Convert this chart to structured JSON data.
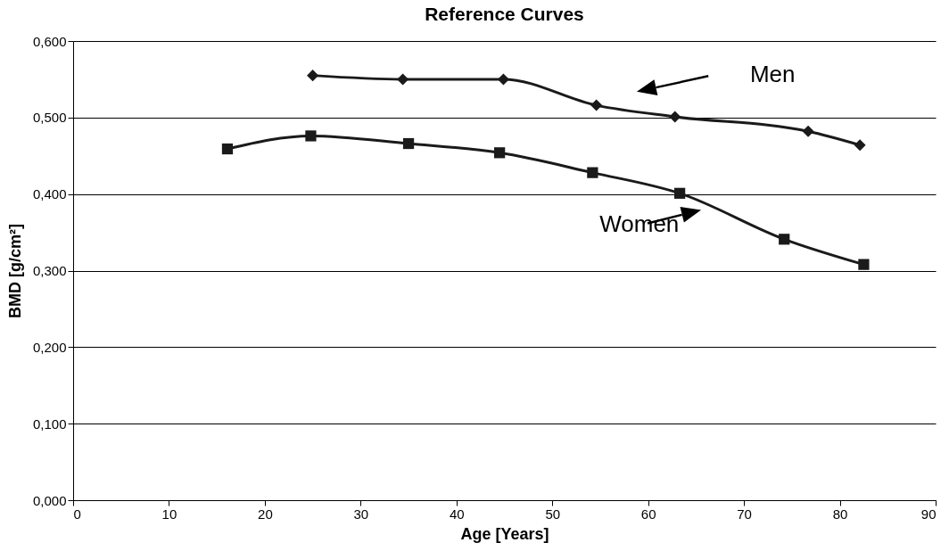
{
  "chart_data": {
    "type": "line",
    "title": "Reference Curves",
    "xlabel": "Age [Years]",
    "ylabel": "BMD [g/cm²]",
    "xlim": [
      0,
      90
    ],
    "xticks": [
      0,
      10,
      20,
      30,
      40,
      50,
      60,
      70,
      80,
      90
    ],
    "ylim": [
      0,
      0.6
    ],
    "yticks": [
      {
        "value": 0,
        "label": "0,000"
      },
      {
        "value": 0.1,
        "label": "0,100"
      },
      {
        "value": 0.2,
        "label": "0,200"
      },
      {
        "value": 0.3,
        "label": "0,300"
      },
      {
        "value": 0.4,
        "label": "0,400"
      },
      {
        "value": 0.5,
        "label": "0,500"
      },
      {
        "value": 0.6,
        "label": "0,600"
      }
    ],
    "grid": "y",
    "line_style": "solid",
    "series": [
      {
        "name": "Men",
        "color": "#1a1a1a",
        "marker": "diamond",
        "x": [
          25,
          34.4,
          44.9,
          54.6,
          62.8,
          76.7,
          82.1
        ],
        "values": [
          0.555,
          0.55,
          0.55,
          0.516,
          0.501,
          0.482,
          0.464
        ]
      },
      {
        "name": "Women",
        "color": "#1a1a1a",
        "marker": "square",
        "x": [
          16.1,
          24.8,
          35.0,
          44.5,
          54.2,
          63.3,
          74.2,
          82.5
        ],
        "values": [
          0.459,
          0.476,
          0.466,
          0.454,
          0.428,
          0.401,
          0.341,
          0.308
        ]
      }
    ]
  }
}
